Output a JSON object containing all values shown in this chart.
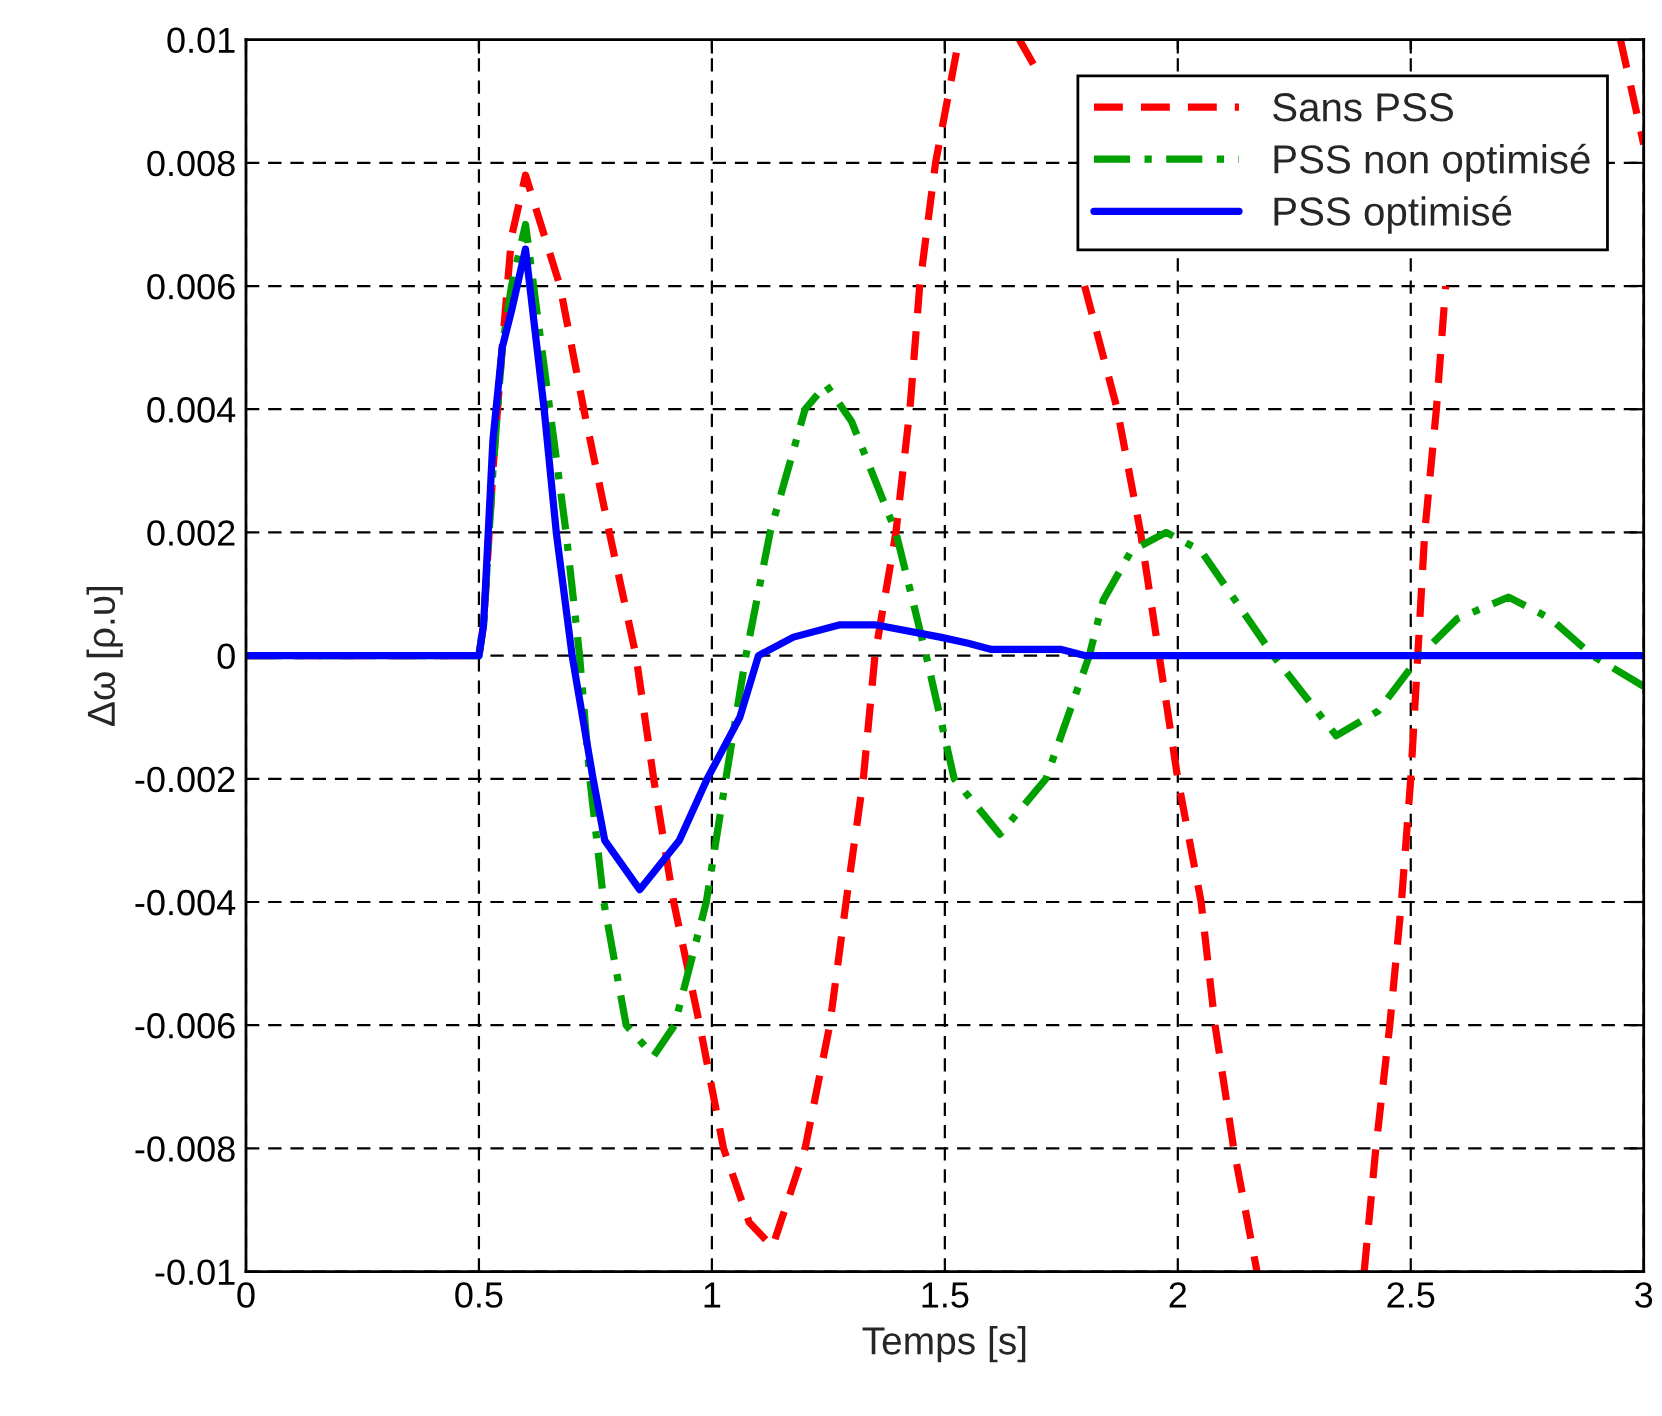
{
  "chart_data": {
    "type": "line",
    "xlabel": "Temps [s]",
    "ylabel": "Δω [ρ.υ]",
    "xlim": [
      0,
      3
    ],
    "xticks": [
      0,
      0.5,
      1,
      1.5,
      2,
      2.5,
      3
    ],
    "ylim": [
      -0.01,
      0.01
    ],
    "yticks": [
      -0.01,
      -0.008,
      -0.006,
      -0.004,
      -0.002,
      0,
      0.002,
      0.004,
      0.006,
      0.008,
      0.01
    ],
    "grid": true,
    "legend": "top right",
    "series": [
      {
        "name": "Sans PSS",
        "color": "#ff0000",
        "line_style": "dashed",
        "x": [
          0,
          0.5,
          0.51,
          0.53,
          0.55,
          0.57,
          0.6,
          0.674,
          0.725,
          0.78,
          0.837,
          0.875,
          0.918,
          0.974,
          1.025,
          1.08,
          1.13,
          1.2,
          1.253,
          1.288,
          1.325,
          1.35,
          1.395,
          1.425,
          1.446,
          1.48,
          1.53,
          1.6,
          1.66,
          1.69,
          1.75,
          1.8,
          1.87,
          1.92,
          1.96,
          2.0,
          2.05,
          2.08,
          2.12,
          2.17,
          2.3,
          2.4,
          2.425,
          2.455,
          2.48,
          2.5,
          2.515,
          2.53,
          2.555,
          2.575,
          2.6,
          2.8,
          2.95,
          3
        ],
        "values": [
          0,
          0,
          0.0005,
          0.003,
          0.005,
          0.0068,
          0.0078,
          0.006,
          0.004,
          0.002,
          0,
          -0.002,
          -0.004,
          -0.006,
          -0.008,
          -0.0092,
          -0.0096,
          -0.008,
          -0.006,
          -0.004,
          -0.002,
          0,
          0.002,
          0.004,
          0.006,
          0.008,
          0.01,
          null,
          0.01,
          0.0096,
          null,
          0.006,
          0.004,
          0.002,
          0,
          -0.002,
          -0.004,
          -0.006,
          -0.008,
          -0.01,
          null,
          -0.01,
          -0.008,
          -0.006,
          -0.004,
          -0.002,
          0,
          0.002,
          0.004,
          0.006,
          null,
          null,
          0.01,
          0.0083
        ]
      },
      {
        "name": "PSS non optimisé",
        "color": "#00a000",
        "line_style": "dashdot",
        "x": [
          0,
          0.5,
          0.51,
          0.53,
          0.55,
          0.57,
          0.6,
          0.652,
          0.687,
          0.716,
          0.738,
          0.768,
          0.816,
          0.875,
          0.92,
          0.988,
          1.03,
          1.073,
          1.125,
          1.2,
          1.245,
          1.3,
          1.395,
          1.46,
          1.52,
          1.618,
          1.717,
          1.81,
          1.84,
          1.9,
          1.975,
          2.05,
          2.205,
          2.34,
          2.43,
          2.52,
          2.6,
          2.71,
          2.8,
          2.89,
          3
        ],
        "values": [
          0,
          0,
          0.0005,
          0.003,
          0.005,
          0.006,
          0.007,
          0.004,
          0.002,
          0,
          -0.002,
          -0.004,
          -0.006,
          -0.0065,
          -0.006,
          -0.004,
          -0.002,
          0,
          0.002,
          0.004,
          0.0044,
          0.0038,
          0.002,
          0,
          -0.002,
          -0.0029,
          -0.002,
          0,
          0.0009,
          0.0017,
          0.002,
          0.0017,
          0,
          -0.0013,
          -0.0009,
          0,
          0.0006,
          0.00095,
          0.0006,
          0,
          -0.0005
        ]
      },
      {
        "name": "PSS optimisé",
        "color": "#0000ff",
        "line_style": "solid",
        "x": [
          0,
          0.5,
          0.51,
          0.53,
          0.55,
          0.57,
          0.6,
          0.64,
          0.666,
          0.7,
          0.745,
          0.77,
          0.845,
          0.93,
          0.99,
          1.06,
          1.1,
          1.175,
          1.275,
          1.35,
          1.49,
          1.55,
          1.6,
          1.75,
          1.8,
          3
        ],
        "values": [
          0,
          0,
          0.0005,
          0.0035,
          0.005,
          0.0056,
          0.0066,
          0.004,
          0.002,
          0,
          -0.002,
          -0.003,
          -0.0038,
          -0.003,
          -0.002,
          -0.001,
          0,
          0.0003,
          0.0005,
          0.0005,
          0.0003,
          0.0002,
          0.0001,
          0.0001,
          0,
          0
        ]
      }
    ]
  }
}
